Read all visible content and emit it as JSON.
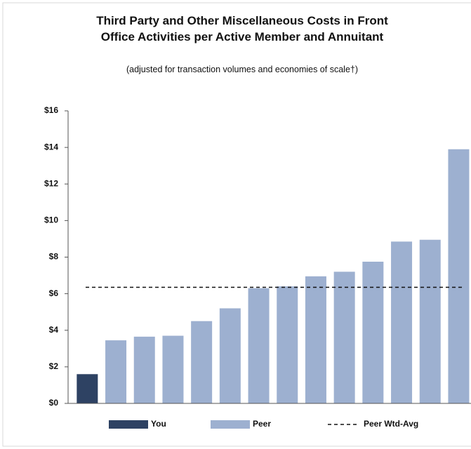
{
  "chart_data": {
    "type": "bar",
    "title": "Third Party and Other Miscellaneous Costs in Front Office Activities per Active Member and Annuitant",
    "subtitle": "(adjusted for transaction volumes and economies of scale†)",
    "categories": [
      null,
      null,
      null,
      null,
      null,
      null,
      null,
      null,
      null,
      null,
      null,
      null,
      null,
      null
    ],
    "series": [
      {
        "name": "You",
        "color": "#2e4263",
        "values": [
          1.6,
          null,
          null,
          null,
          null,
          null,
          null,
          null,
          null,
          null,
          null,
          null,
          null,
          null
        ]
      },
      {
        "name": "Peer",
        "color": "#9db0d0",
        "values": [
          null,
          3.45,
          3.65,
          3.7,
          4.5,
          5.2,
          6.3,
          6.4,
          6.95,
          7.2,
          7.75,
          8.85,
          8.95,
          13.9
        ]
      }
    ],
    "reference_line": {
      "name": "Peer Wtd-Avg",
      "value": 6.35,
      "style": "dashed",
      "color": "#111111"
    },
    "ylim": [
      0,
      16
    ],
    "yticks": [
      {
        "value": 0,
        "label": "$0"
      },
      {
        "value": 2,
        "label": "$2"
      },
      {
        "value": 4,
        "label": "$4"
      },
      {
        "value": 6,
        "label": "$6"
      },
      {
        "value": 8,
        "label": "$8"
      },
      {
        "value": 10,
        "label": "$10"
      },
      {
        "value": 12,
        "label": "$12"
      },
      {
        "value": 14,
        "label": "$14"
      },
      {
        "value": 16,
        "label": "$16"
      }
    ],
    "grid": false,
    "legend": "bottom"
  }
}
